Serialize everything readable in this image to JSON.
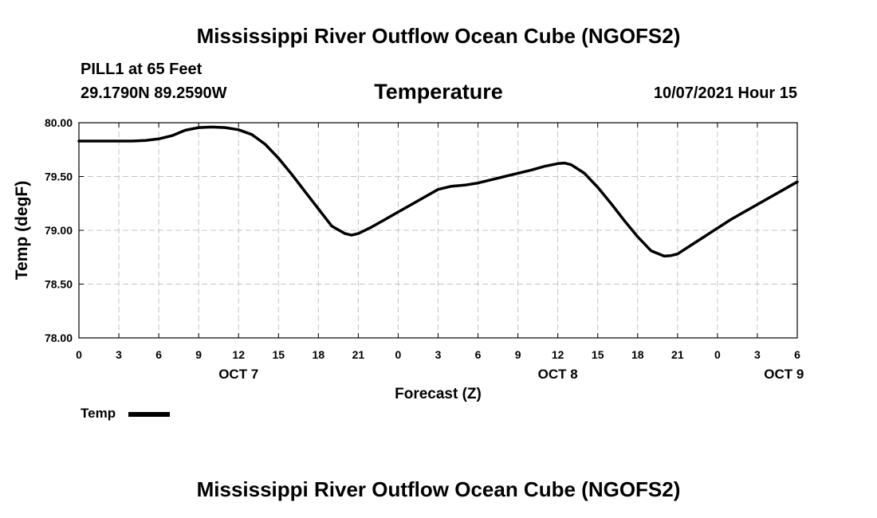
{
  "header": {
    "title": "Mississippi River Outflow Ocean Cube (NGOFS2)",
    "station": "PILL1 at 65 Feet",
    "coords": "29.1790N  89.2590W",
    "subtitle": "Temperature",
    "datetime": "10/07/2021 Hour 15"
  },
  "footer": {
    "title": "Mississippi River Outflow Ocean Cube (NGOFS2)"
  },
  "legend": {
    "label": "Temp"
  },
  "chart_data": {
    "type": "line",
    "title": "Temperature",
    "xlabel": "Forecast (Z)",
    "ylabel": "Temp (degF)",
    "xlim": [
      0,
      54
    ],
    "ylim": [
      78.0,
      80.0
    ],
    "grid": true,
    "legend_position": "bottom-left",
    "y_ticks": [
      78.0,
      78.5,
      79.0,
      79.5,
      80.0
    ],
    "y_tick_labels": [
      "78.00",
      "78.50",
      "79.00",
      "79.50",
      "80.00"
    ],
    "x_ticks": [
      0,
      3,
      6,
      9,
      12,
      15,
      18,
      21,
      24,
      27,
      30,
      33,
      36,
      39,
      42,
      45,
      48,
      51,
      54
    ],
    "x_tick_labels": [
      "0",
      "3",
      "6",
      "9",
      "12",
      "15",
      "18",
      "21",
      "0",
      "3",
      "6",
      "9",
      "12",
      "15",
      "18",
      "21",
      "0",
      "3",
      "6"
    ],
    "date_labels": [
      {
        "x": 12,
        "label": "OCT 7"
      },
      {
        "x": 36,
        "label": "OCT 8"
      },
      {
        "x": 53,
        "label": "OCT 9"
      }
    ],
    "series": [
      {
        "name": "Temp",
        "color": "#000000",
        "x": [
          0,
          2,
          4,
          5,
          6,
          7,
          8,
          9,
          10,
          11,
          12,
          13,
          14,
          15,
          16,
          17,
          18,
          19,
          20,
          20.5,
          21,
          22,
          23,
          24,
          25,
          26,
          27,
          28,
          29,
          30,
          31,
          32,
          33,
          34,
          35,
          36,
          36.5,
          37,
          38,
          39,
          40,
          41,
          42,
          43,
          44,
          44.5,
          45,
          46,
          47,
          48,
          49,
          50,
          51,
          52,
          53,
          54
        ],
        "y": [
          79.83,
          79.83,
          79.83,
          79.835,
          79.85,
          79.88,
          79.93,
          79.955,
          79.96,
          79.955,
          79.935,
          79.89,
          79.8,
          79.67,
          79.52,
          79.36,
          79.2,
          79.04,
          78.97,
          78.955,
          78.97,
          79.03,
          79.1,
          79.17,
          79.24,
          79.31,
          79.38,
          79.41,
          79.42,
          79.44,
          79.47,
          79.5,
          79.53,
          79.56,
          79.595,
          79.62,
          79.625,
          79.61,
          79.53,
          79.4,
          79.25,
          79.09,
          78.94,
          78.81,
          78.76,
          78.765,
          78.78,
          78.86,
          78.94,
          79.02,
          79.1,
          79.17,
          79.24,
          79.31,
          79.38,
          79.45
        ]
      }
    ]
  }
}
